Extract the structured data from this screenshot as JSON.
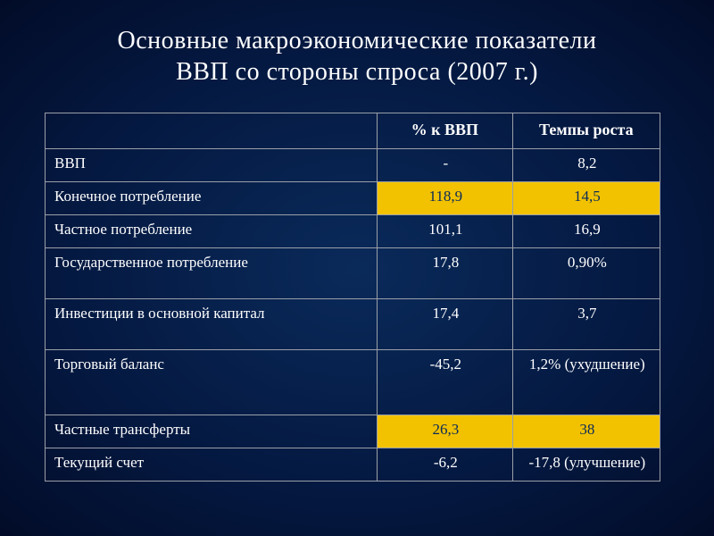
{
  "title": {
    "line1": "Основные макроэкономические показатели",
    "line2": "ВВП со стороны спроса (2007 г.)"
  },
  "table": {
    "type": "table",
    "background_color": "transparent",
    "border_color": "#9aa0a8",
    "text_color": "#ffffff",
    "highlight_bg": "#f2c200",
    "highlight_text": "#0a2a5a",
    "header_fontsize": 18,
    "cell_fontsize": 17,
    "columns_width": [
      "54%",
      "22%",
      "24%"
    ],
    "columns": [
      "",
      "% к ВВП",
      "Темпы роста"
    ],
    "rows": [
      {
        "label": "ВВП",
        "pct": "-",
        "growth": "8,2",
        "highlight": false,
        "height": "normal"
      },
      {
        "label": "Конечное потребление",
        "pct": "118,9",
        "growth": "14,5",
        "highlight": true,
        "height": "normal"
      },
      {
        "label": "Частное потребление",
        "pct": "101,1",
        "growth": "16,9",
        "highlight": false,
        "height": "normal"
      },
      {
        "label": "Государственное потребление",
        "pct": "17,8",
        "growth": "0,90%",
        "highlight": false,
        "height": "tall"
      },
      {
        "label": "Инвестиции в основной капитал",
        "pct": "17,4",
        "growth": "3,7",
        "highlight": false,
        "height": "tall"
      },
      {
        "label": "Торговый баланс",
        "pct": "-45,2",
        "growth": "1,2% (ухудшение)",
        "highlight": false,
        "height": "vtall"
      },
      {
        "label": "Частные трансферты",
        "pct": "26,3",
        "growth": "38",
        "highlight": true,
        "height": "normal"
      },
      {
        "label": "Текущий счет",
        "pct": "-6,2",
        "growth": "-17,8 (улучшение)",
        "highlight": false,
        "height": "normal"
      }
    ]
  }
}
